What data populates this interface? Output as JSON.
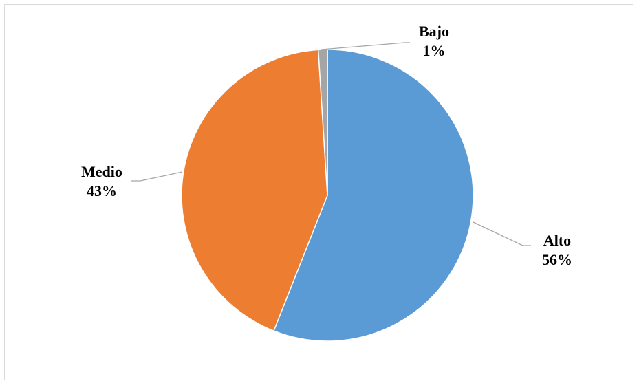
{
  "chart_data": {
    "type": "pie",
    "title": "",
    "categories": [
      "Alto",
      "Medio",
      "Bajo"
    ],
    "values": [
      56,
      43,
      1
    ],
    "value_labels": [
      "56%",
      "43%",
      "1%"
    ],
    "colors": [
      "#5b9bd5",
      "#ed7d31",
      "#a5a5a5"
    ],
    "start": "top",
    "direction": "clockwise",
    "legend": "none",
    "data_labels": "outside-with-leader-lines"
  }
}
